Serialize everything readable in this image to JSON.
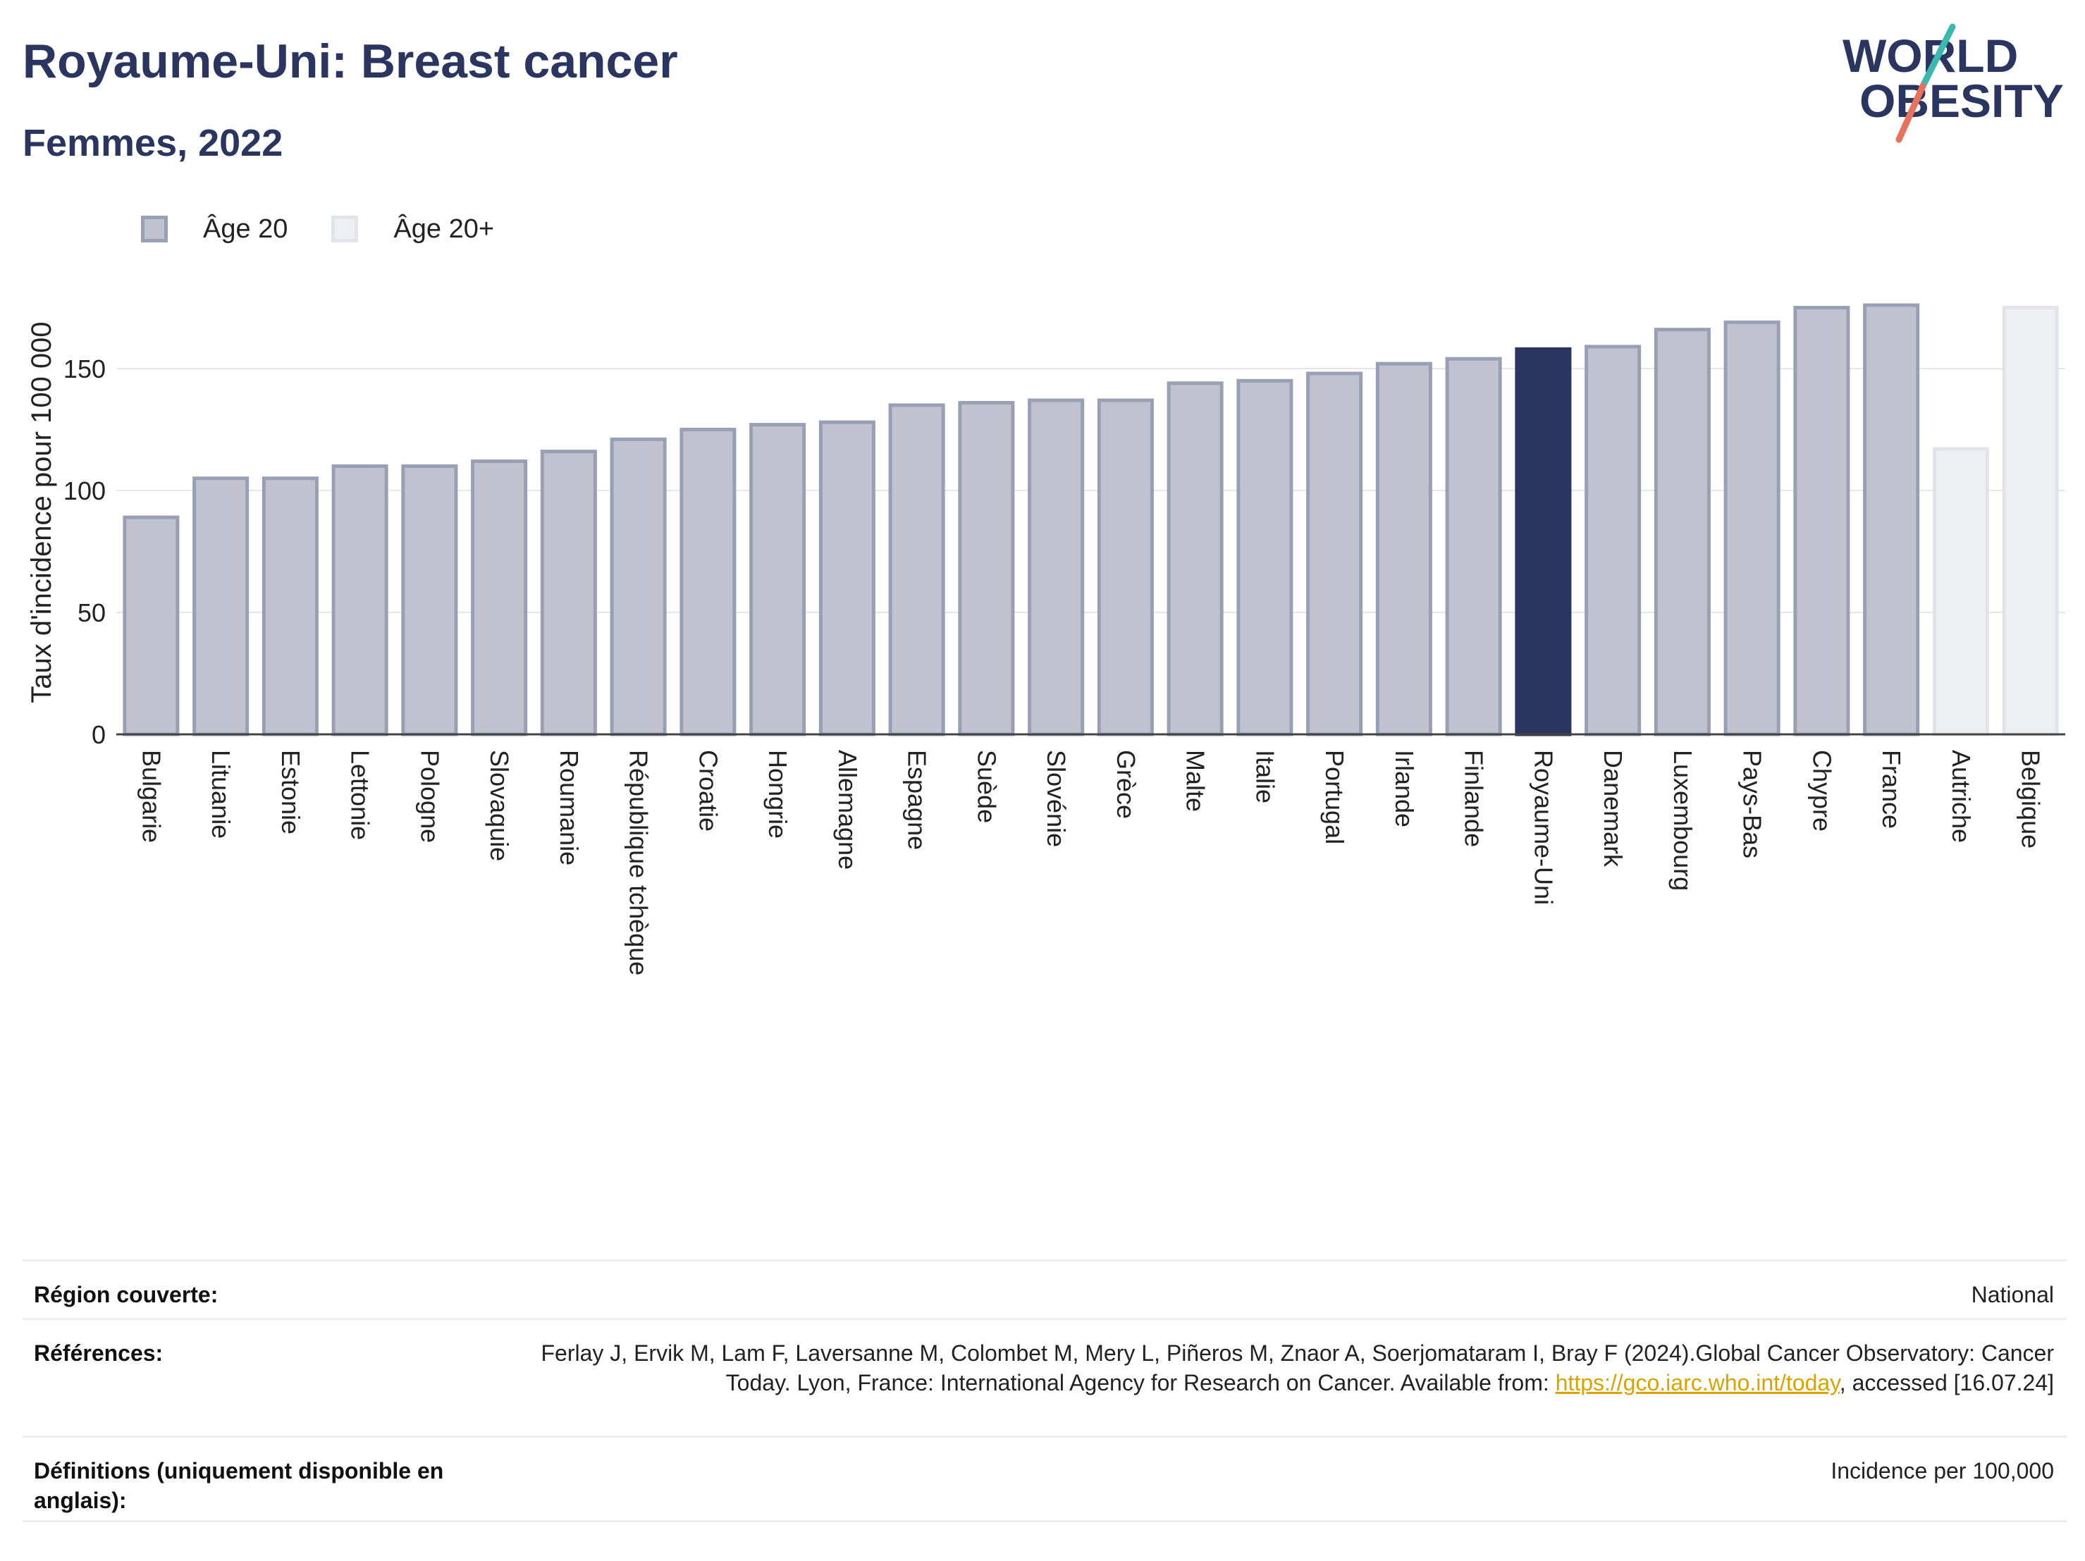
{
  "header": {
    "title": "Royaume-Uni: Breast cancer",
    "subtitle": "Femmes, 2022",
    "logo_line1": "WORLD",
    "logo_line2": "OBESITY"
  },
  "legend": [
    {
      "label": "Âge 20",
      "color": "#9aa0b4"
    },
    {
      "label": "Âge 20+",
      "color": "#e8e9ee"
    }
  ],
  "chart_data": {
    "type": "bar",
    "title": "Royaume-Uni: Breast cancer",
    "subtitle": "Femmes, 2022",
    "xlabel": "",
    "ylabel": "Taux d'incidence pour 100 000",
    "ylim": [
      0,
      185
    ],
    "yticks": [
      0,
      50,
      100,
      150
    ],
    "grid": true,
    "legend_position": "top-left",
    "highlight": "Royaume-Uni",
    "categories": [
      "Bulgarie",
      "Lituanie",
      "Estonie",
      "Lettonie",
      "Pologne",
      "Slovaquie",
      "Roumanie",
      "République tchèque",
      "Croatie",
      "Hongrie",
      "Allemagne",
      "Espagne",
      "Suède",
      "Slovénie",
      "Grèce",
      "Malte",
      "Italie",
      "Portugal",
      "Irlande",
      "Finlande",
      "Royaume-Uni",
      "Danemark",
      "Luxembourg",
      "Pays-Bas",
      "Chypre",
      "France",
      "Autriche",
      "Belgique"
    ],
    "values": [
      89,
      105,
      105,
      110,
      110,
      112,
      116,
      121,
      125,
      127,
      128,
      135,
      136,
      137,
      137,
      144,
      145,
      148,
      152,
      154,
      158,
      159,
      166,
      169,
      175,
      176,
      117,
      175
    ],
    "groups": [
      "Âge 20",
      "Âge 20",
      "Âge 20",
      "Âge 20",
      "Âge 20",
      "Âge 20",
      "Âge 20",
      "Âge 20",
      "Âge 20",
      "Âge 20",
      "Âge 20",
      "Âge 20",
      "Âge 20",
      "Âge 20",
      "Âge 20",
      "Âge 20",
      "Âge 20",
      "Âge 20",
      "Âge 20",
      "Âge 20",
      "Âge 20",
      "Âge 20",
      "Âge 20",
      "Âge 20",
      "Âge 20",
      "Âge 20",
      "Âge 20+",
      "Âge 20+"
    ],
    "colors": {
      "age20_fill": "#c0c3cf",
      "age20_stroke": "#9aa0b4",
      "age20plus_fill": "#eeeff3",
      "age20plus_stroke": "#e3e4ea",
      "highlight": "#2a3560"
    }
  },
  "info": {
    "rows": [
      {
        "label": "Région couverte:",
        "value": "National"
      },
      {
        "label": "Références:",
        "value_pre": "Ferlay J, Ervik M, Lam F, Laversanne M, Colombet M, Mery L, Piñeros M, Znaor A, Soerjomataram I, Bray F (2024).Global Cancer Observatory: Cancer Today. Lyon, France: International Agency for Research on Cancer. Available from: ",
        "value_link": "https://gco.iarc.who.int/today",
        "value_post": ", accessed [16.07.24]"
      },
      {
        "label": "Définitions (uniquement disponible en anglais):",
        "value": "Incidence per 100,000"
      }
    ]
  }
}
